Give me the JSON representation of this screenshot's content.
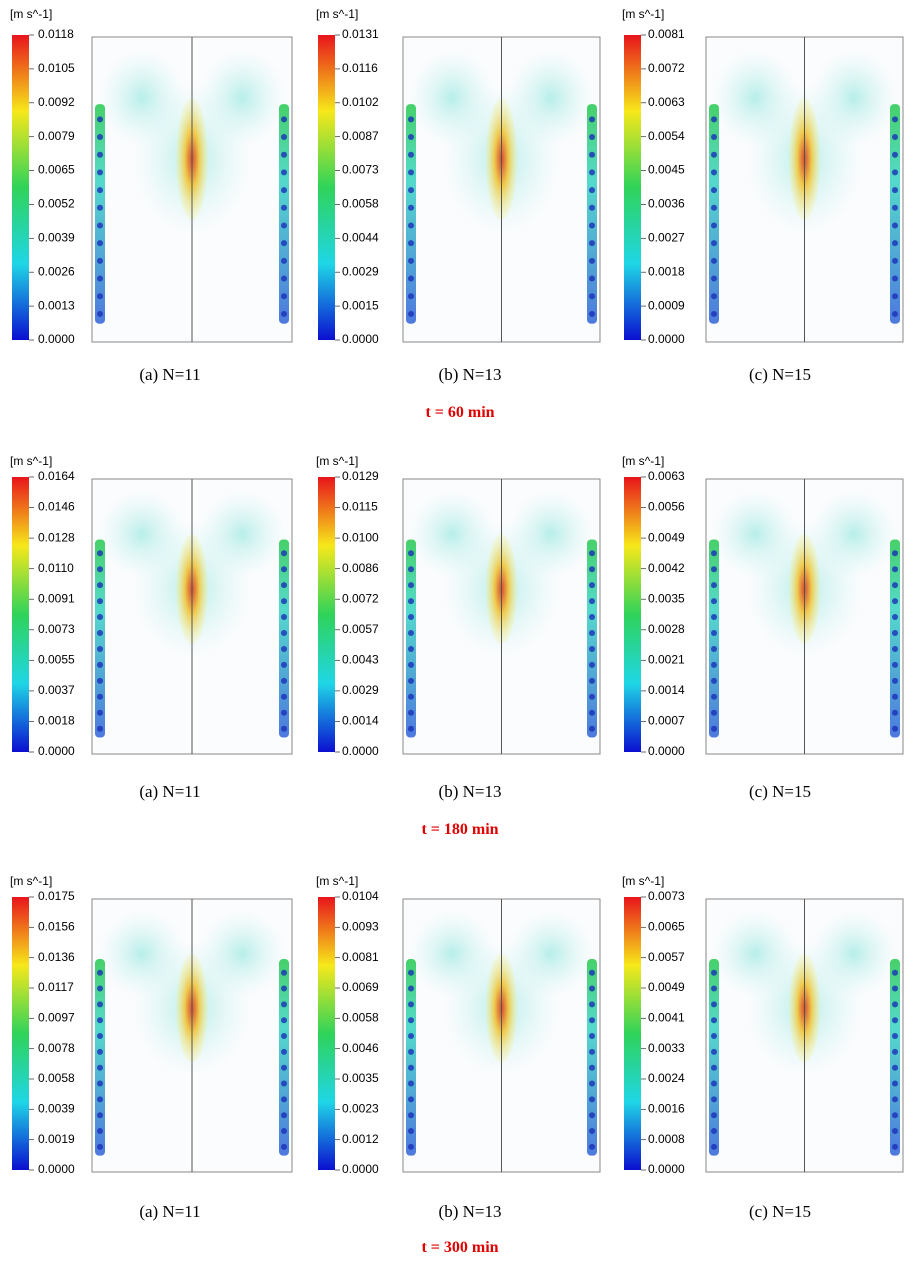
{
  "rows": [
    {
      "time": "t = 60 min",
      "panels": [
        {
          "unit": "[m s^-1]",
          "ticks": [
            "0.0118",
            "0.0105",
            "0.0092",
            "0.0079",
            "0.0065",
            "0.0052",
            "0.0039",
            "0.0026",
            "0.0013",
            "0.0000"
          ],
          "caption": "(a) N=11"
        },
        {
          "unit": "[m s^-1]",
          "ticks": [
            "0.0131",
            "0.0116",
            "0.0102",
            "0.0087",
            "0.0073",
            "0.0058",
            "0.0044",
            "0.0029",
            "0.0015",
            "0.0000"
          ],
          "caption": "(b) N=13"
        },
        {
          "unit": "[m s^-1]",
          "ticks": [
            "0.0081",
            "0.0072",
            "0.0063",
            "0.0054",
            "0.0045",
            "0.0036",
            "0.0027",
            "0.0018",
            "0.0009",
            "0.0000"
          ],
          "caption": "(c) N=15"
        }
      ]
    },
    {
      "time": "t = 180 min",
      "panels": [
        {
          "unit": "[m s^-1]",
          "ticks": [
            "0.0164",
            "0.0146",
            "0.0128",
            "0.0110",
            "0.0091",
            "0.0073",
            "0.0055",
            "0.0037",
            "0.0018",
            "0.0000"
          ],
          "caption": "(a) N=11"
        },
        {
          "unit": "[m s^-1]",
          "ticks": [
            "0.0129",
            "0.0115",
            "0.0100",
            "0.0086",
            "0.0072",
            "0.0057",
            "0.0043",
            "0.0029",
            "0.0014",
            "0.0000"
          ],
          "caption": "(b) N=13"
        },
        {
          "unit": "[m s^-1]",
          "ticks": [
            "0.0063",
            "0.0056",
            "0.0049",
            "0.0042",
            "0.0035",
            "0.0028",
            "0.0021",
            "0.0014",
            "0.0007",
            "0.0000"
          ],
          "caption": "(c) N=15"
        }
      ]
    },
    {
      "time": "t = 300 min",
      "panels": [
        {
          "unit": "[m s^-1]",
          "ticks": [
            "0.0175",
            "0.0156",
            "0.0136",
            "0.0117",
            "0.0097",
            "0.0078",
            "0.0058",
            "0.0039",
            "0.0019",
            "0.0000"
          ],
          "caption": "(a) N=11"
        },
        {
          "unit": "[m s^-1]",
          "ticks": [
            "0.0104",
            "0.0093",
            "0.0081",
            "0.0069",
            "0.0058",
            "0.0046",
            "0.0035",
            "0.0023",
            "0.0012",
            "0.0000"
          ],
          "caption": "(b) N=13"
        },
        {
          "unit": "[m s^-1]",
          "ticks": [
            "0.0073",
            "0.0065",
            "0.0057",
            "0.0049",
            "0.0041",
            "0.0033",
            "0.0024",
            "0.0016",
            "0.0008",
            "0.0000"
          ],
          "caption": "(c) N=15"
        }
      ]
    }
  ]
}
